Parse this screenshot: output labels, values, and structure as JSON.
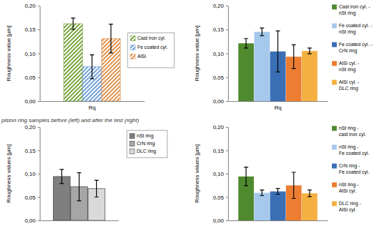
{
  "caption": "piston ring samples before (left) and after the test (right)",
  "chart_data": [
    {
      "type": "bar",
      "y_label": "Roughness value [µm]",
      "categories": [
        "Rq"
      ],
      "ylim": [
        0,
        0.2
      ],
      "yticks": [
        {
          "value": 0,
          "label": "0,00"
        },
        {
          "value": 0.05,
          "label": "0,05"
        },
        {
          "value": 0.1,
          "label": "0,10"
        },
        {
          "value": 0.15,
          "label": "0,15"
        },
        {
          "value": 0.2,
          "label": "0,20"
        }
      ],
      "legend": "right",
      "series": [
        {
          "name": "Cast iron cyl.",
          "color": "#77a33c",
          "values": [
            0.162
          ],
          "errors": [
            0.012
          ]
        },
        {
          "name": "Fe coated cyl.",
          "color": "#6f9fd8",
          "values": [
            0.072
          ],
          "errors": [
            0.025
          ]
        },
        {
          "name": "AlSi",
          "color": "#e0904a",
          "values": [
            0.131
          ],
          "errors": [
            0.03
          ]
        }
      ]
    },
    {
      "type": "bar",
      "y_label": "Roughness value [µm]",
      "categories": [
        "Rq"
      ],
      "ylim": [
        0,
        0.2
      ],
      "yticks": [
        {
          "value": 0,
          "label": "0,00"
        },
        {
          "value": 0.05,
          "label": "0,05"
        },
        {
          "value": 0.1,
          "label": "0,10"
        },
        {
          "value": 0.15,
          "label": "0,15"
        },
        {
          "value": 0.2,
          "label": "0,20"
        }
      ],
      "legend": "right",
      "series": [
        {
          "name": "Cast iron cyl. - nSt ring",
          "color": "#4f8a2f",
          "values": [
            0.121
          ],
          "errors": [
            0.01
          ]
        },
        {
          "name": "Fe coated cyl. - nSt ring",
          "color": "#a6c8ec",
          "values": [
            0.145
          ],
          "errors": [
            0.008
          ]
        },
        {
          "name": "Fe coated cyl. - CrN ring",
          "color": "#3a6fb5",
          "values": [
            0.104
          ],
          "errors": [
            0.043
          ]
        },
        {
          "name": "AlSi cyl. - nSt ring",
          "color": "#ed7d31",
          "values": [
            0.093
          ],
          "errors": [
            0.025
          ]
        },
        {
          "name": "AlSi cyl. - DLC ring",
          "color": "#f4b142",
          "values": [
            0.105
          ],
          "errors": [
            0.006
          ]
        }
      ]
    },
    {
      "type": "bar",
      "y_label": "Roughness values [µm]",
      "categories": [
        null
      ],
      "ylim": [
        0,
        0.2
      ],
      "yticks": [
        {
          "value": 0,
          "label": "0,00"
        },
        {
          "value": 0.05,
          "label": "0,05"
        },
        {
          "value": 0.1,
          "label": "0,10"
        },
        {
          "value": 0.15,
          "label": "0,15"
        },
        {
          "value": 0.2,
          "label": "0,20"
        }
      ],
      "legend": "right",
      "series": [
        {
          "name": "nSt ring",
          "color": "#7f7f7f",
          "values": [
            0.094
          ],
          "errors": [
            0.015
          ]
        },
        {
          "name": "CrN ring",
          "color": "#a6a6a6",
          "values": [
            0.072
          ],
          "errors": [
            0.03
          ]
        },
        {
          "name": "DLC ring",
          "color": "#d9d9d9",
          "values": [
            0.068
          ],
          "errors": [
            0.018
          ]
        }
      ]
    },
    {
      "type": "bar",
      "y_label": "Roughness values [µm]",
      "categories": [
        null
      ],
      "ylim": [
        0,
        0.2
      ],
      "yticks": [
        {
          "value": 0,
          "label": "0,00"
        },
        {
          "value": 0.05,
          "label": "0,05"
        },
        {
          "value": 0.1,
          "label": "0,10"
        },
        {
          "value": 0.15,
          "label": "0,15"
        },
        {
          "value": 0.2,
          "label": "0,20"
        }
      ],
      "legend": "right",
      "series": [
        {
          "name": "nSt ring - cast iron cyl.",
          "color": "#4f8a2f",
          "values": [
            0.094
          ],
          "errors": [
            0.02
          ]
        },
        {
          "name": "nSt ring - Fe coated cyl.",
          "color": "#a6c8ec",
          "values": [
            0.059
          ],
          "errors": [
            0.006
          ]
        },
        {
          "name": "CrN ring - Fe coated cyl.",
          "color": "#3a6fb5",
          "values": [
            0.062
          ],
          "errors": [
            0.006
          ]
        },
        {
          "name": "nSt ring - AlSi cyl.",
          "color": "#ed7d31",
          "values": [
            0.075
          ],
          "errors": [
            0.028
          ]
        },
        {
          "name": "DLC ring - AlSi cyl.",
          "color": "#f4b142",
          "values": [
            0.058
          ],
          "errors": [
            0.007
          ]
        }
      ]
    }
  ]
}
